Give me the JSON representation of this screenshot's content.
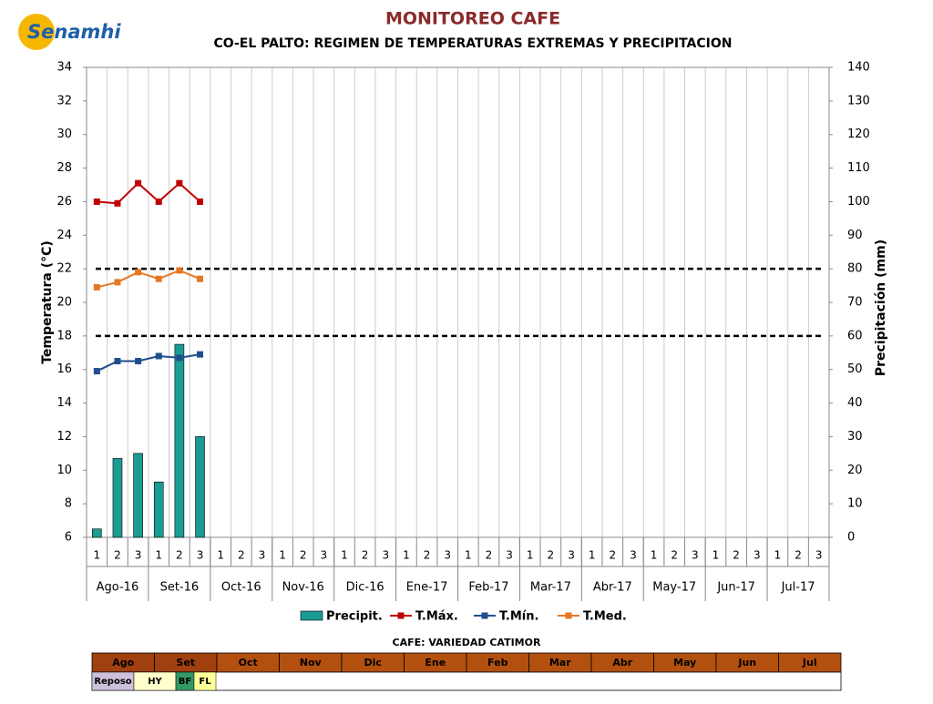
{
  "logo": "Senamhi",
  "chart_data": {
    "type": "combo",
    "title": "MONITOREO CAFE",
    "subtitle": "CO-EL PALTO: REGIMEN DE TEMPERATURAS EXTREMAS Y PRECIPITACION",
    "y_label": "Temperatura (°C)",
    "y2_label": "Precipitación (mm)",
    "categories": [
      "1",
      "2",
      "3",
      "1",
      "2",
      "3",
      "1",
      "2",
      "3",
      "1",
      "2",
      "3",
      "1",
      "2",
      "3",
      "1",
      "2",
      "3",
      "1",
      "2",
      "3",
      "1",
      "2",
      "3",
      "1",
      "2",
      "3",
      "1",
      "2",
      "3",
      "1",
      "2",
      "3",
      "1",
      "2",
      "3"
    ],
    "groups": [
      "Ago-16",
      "Set-16",
      "Oct-16",
      "Nov-16",
      "Dic-16",
      "Ene-17",
      "Feb-17",
      "Mar-17",
      "Abr-17",
      "May-17",
      "Jun-17",
      "Jul-17"
    ],
    "ylim": [
      6,
      34
    ],
    "yticks": [
      6,
      8,
      10,
      12,
      14,
      16,
      18,
      20,
      22,
      24,
      26,
      28,
      30,
      32,
      34
    ],
    "y2lim": [
      0,
      140
    ],
    "y2ticks": [
      0,
      10,
      20,
      30,
      40,
      50,
      60,
      70,
      80,
      90,
      100,
      110,
      120,
      130,
      140
    ],
    "reference_lines": [
      22,
      18
    ],
    "series": [
      {
        "name": "Precipit.",
        "type": "bar",
        "axis": "y2",
        "color": "#1a9b94",
        "values": [
          2.5,
          23.5,
          25,
          16.5,
          57.5,
          30,
          null,
          null,
          null,
          null,
          null,
          null,
          null,
          null,
          null,
          null,
          null,
          null,
          null,
          null,
          null,
          null,
          null,
          null,
          null,
          null,
          null,
          null,
          null,
          null,
          null,
          null,
          null,
          null,
          null,
          null
        ]
      },
      {
        "name": "T.Máx.",
        "type": "line",
        "color": "#c00000",
        "values": [
          26,
          25.9,
          27.1,
          26,
          27.1,
          26,
          null,
          null,
          null,
          null,
          null,
          null,
          null,
          null,
          null,
          null,
          null,
          null,
          null,
          null,
          null,
          null,
          null,
          null,
          null,
          null,
          null,
          null,
          null,
          null,
          null,
          null,
          null,
          null,
          null,
          null
        ]
      },
      {
        "name": "T.Mín.",
        "type": "line",
        "color": "#1f4e8c",
        "values": [
          15.9,
          16.5,
          16.5,
          16.8,
          16.7,
          16.9,
          null,
          null,
          null,
          null,
          null,
          null,
          null,
          null,
          null,
          null,
          null,
          null,
          null,
          null,
          null,
          null,
          null,
          null,
          null,
          null,
          null,
          null,
          null,
          null,
          null,
          null,
          null,
          null,
          null,
          null
        ]
      },
      {
        "name": "T.Med.",
        "type": "line",
        "color": "#e87722",
        "values": [
          20.9,
          21.2,
          21.8,
          21.4,
          21.9,
          21.4,
          null,
          null,
          null,
          null,
          null,
          null,
          null,
          null,
          null,
          null,
          null,
          null,
          null,
          null,
          null,
          null,
          null,
          null,
          null,
          null,
          null,
          null,
          null,
          null,
          null,
          null,
          null,
          null,
          null,
          null
        ]
      }
    ]
  },
  "phenology": {
    "title": "CAFE: VARIEDAD CATIMOR",
    "months": [
      "Ago",
      "Set",
      "Oct",
      "Nov",
      "Dic",
      "Ene",
      "Feb",
      "Mar",
      "Abr",
      "May",
      "Jun",
      "Jul"
    ],
    "stages": [
      {
        "label": "Reposo",
        "color": "#ccc0da"
      },
      {
        "label": "HY",
        "color": "#ffffcc"
      },
      {
        "label": "BF",
        "color": "#339966"
      },
      {
        "label": "FL",
        "color": "#ffff99"
      }
    ]
  }
}
